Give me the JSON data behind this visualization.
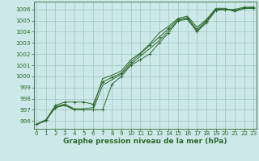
{
  "title": "Graphe pression niveau de la mer (hPa)",
  "xlabel_hours": [
    0,
    1,
    2,
    3,
    4,
    5,
    6,
    7,
    8,
    9,
    10,
    11,
    12,
    13,
    14,
    15,
    16,
    17,
    18,
    19,
    20,
    21,
    22,
    23
  ],
  "line1": [
    995.7,
    996.1,
    997.2,
    997.5,
    997.0,
    997.0,
    997.0,
    997.0,
    999.3,
    1000.0,
    1001.0,
    1001.5,
    1002.0,
    1003.0,
    1003.9,
    1005.0,
    1005.1,
    1004.0,
    1004.8,
    1005.9,
    1006.0,
    1005.9,
    1006.1,
    1006.1
  ],
  "line2": [
    995.7,
    996.1,
    997.4,
    997.7,
    997.7,
    997.7,
    997.5,
    999.5,
    999.9,
    1000.3,
    1001.3,
    1002.0,
    1002.8,
    1003.5,
    1004.3,
    1005.1,
    1005.2,
    1004.2,
    1005.0,
    1006.0,
    1006.0,
    1006.0,
    1006.2,
    1006.2
  ],
  "line3": [
    995.7,
    996.0,
    997.3,
    997.5,
    997.1,
    997.1,
    997.2,
    999.8,
    1000.1,
    1000.5,
    1001.5,
    1002.1,
    1002.9,
    1003.9,
    1004.5,
    1005.2,
    1005.4,
    1004.4,
    1005.1,
    1006.1,
    1006.1,
    1005.8,
    1006.1,
    1006.2
  ],
  "line4": [
    995.7,
    996.1,
    997.2,
    997.4,
    997.0,
    997.0,
    997.0,
    999.2,
    999.7,
    1000.2,
    1001.1,
    1001.8,
    1002.5,
    1003.2,
    1004.1,
    1005.0,
    1005.3,
    1004.1,
    1004.9,
    1006.0,
    1006.0,
    1005.9,
    1006.1,
    1006.1
  ],
  "line_color": "#2d6a2d",
  "bg_color": "#cde8e8",
  "grid_color": "#a0c4c4",
  "ylim": [
    995.3,
    1006.7
  ],
  "yticks": [
    996,
    997,
    998,
    999,
    1000,
    1001,
    1002,
    1003,
    1004,
    1005,
    1006
  ],
  "title_fontsize": 6.5,
  "tick_fontsize": 5.2,
  "figwidth": 3.2,
  "figheight": 2.0,
  "dpi": 100
}
